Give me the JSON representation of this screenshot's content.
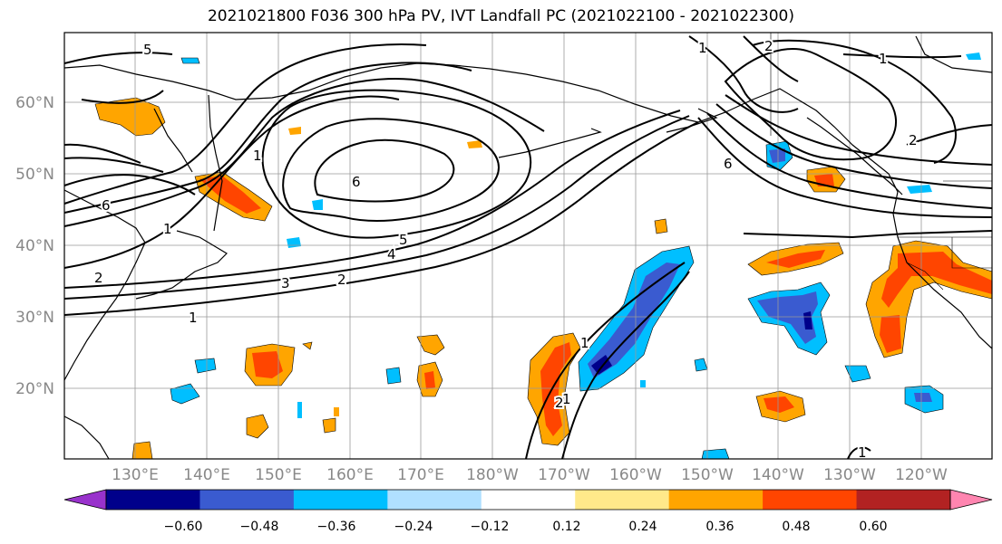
{
  "title": "2021021800 F036 300 hPa PV, IVT Landfall PC (2021022100 - 2021022300)",
  "lat_labels": [
    "60°N",
    "50°N",
    "40°N",
    "30°N",
    "20°N"
  ],
  "lon_labels": [
    "130°E",
    "140°E",
    "150°E",
    "160°E",
    "170°E",
    "180°W",
    "170°W",
    "160°W",
    "150°W",
    "140°W",
    "130°W",
    "120°W"
  ],
  "colorbar": {
    "ticks": [
      "−0.60",
      "−0.48",
      "−0.36",
      "−0.24",
      "−0.12",
      "0.12",
      "0.24",
      "0.36",
      "0.48",
      "0.60"
    ],
    "colors": [
      "#9932cc",
      "#00008b",
      "#3a5bd0",
      "#00bfff",
      "#b0e0ff",
      "#ffffff",
      "#ffe98a",
      "#ffa500",
      "#ff4500",
      "#b22222",
      "#ff85b0"
    ]
  },
  "contour_labels": [
    "5",
    "1",
    "1",
    "6",
    "6",
    "5",
    "4",
    "3",
    "2",
    "1",
    "2",
    "1",
    "1",
    "6",
    "2",
    "1",
    "2",
    "1",
    "1",
    "2"
  ]
}
